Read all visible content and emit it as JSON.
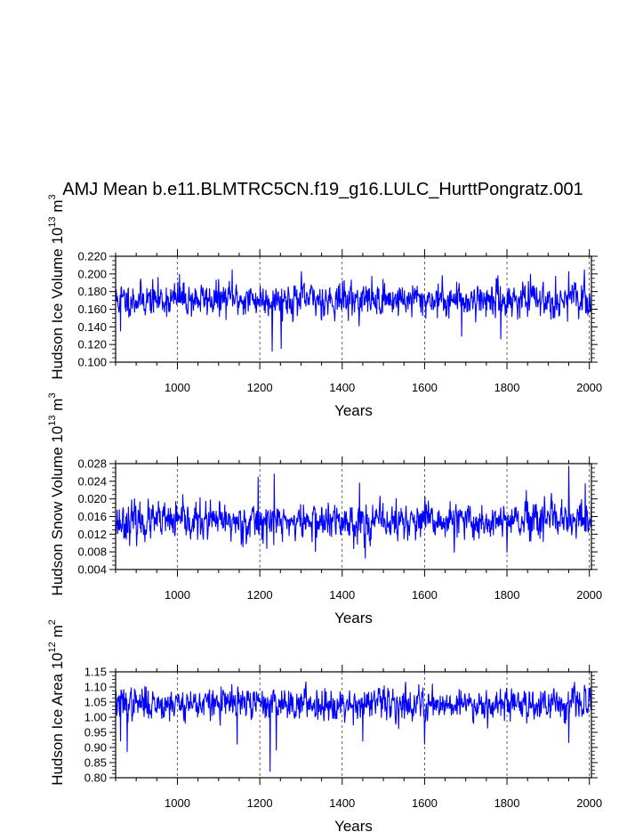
{
  "title": "AMJ Mean b.e11.BLMTRC5CN.f19_g16.LULC_HurttPongratz.001",
  "colors": {
    "line": "#0000ff",
    "axis": "#000000"
  },
  "chart_data": [
    {
      "type": "line",
      "title": "AMJ Mean b.e11.BLMTRC5CN.f19_g16.LULC_HurttPongratz.001",
      "xlabel": "Years",
      "ylabel": {
        "prefix": "Hudson Ice Volume 10",
        "exp": "13",
        "unit": " m",
        "unit_exp": "3"
      },
      "xlim": [
        850,
        2005
      ],
      "ylim": [
        0.1,
        0.22
      ],
      "xticks": [
        1000,
        1200,
        1400,
        1600,
        1800,
        2000
      ],
      "xtick_labels": [
        "1000",
        "1200",
        "1400",
        "1600",
        "1800",
        "2000"
      ],
      "yticks": [
        0.1,
        0.12,
        0.14,
        0.16,
        0.18,
        0.2,
        0.22
      ],
      "ytick_labels": [
        "0.100",
        "0.120",
        "0.140",
        "0.160",
        "0.180",
        "0.200",
        "0.220"
      ],
      "series": [
        {
          "name": "Hudson Ice Volume",
          "x_start": 850,
          "x_end": 2005,
          "mean": 0.171,
          "noise": 0.011,
          "seed": 11,
          "events": [
            [
              1133,
              0.205
            ],
            [
              1230,
              0.112
            ],
            [
              1252,
              0.115
            ],
            [
              1301,
              0.203
            ],
            [
              1690,
              0.129
            ],
            [
              1785,
              0.126
            ],
            [
              1950,
              0.203
            ],
            [
              862,
              0.135
            ],
            [
              1005,
              0.2
            ]
          ]
        }
      ]
    },
    {
      "type": "line",
      "title": "",
      "xlabel": "Years",
      "ylabel": {
        "prefix": "Hudson Snow Volume 10",
        "exp": "13",
        "unit": " m",
        "unit_exp": "3"
      },
      "xlim": [
        850,
        2005
      ],
      "ylim": [
        0.004,
        0.028
      ],
      "xticks": [
        1000,
        1200,
        1400,
        1600,
        1800,
        2000
      ],
      "xtick_labels": [
        "1000",
        "1200",
        "1400",
        "1600",
        "1800",
        "2000"
      ],
      "yticks": [
        0.004,
        0.008,
        0.012,
        0.016,
        0.02,
        0.024,
        0.028
      ],
      "ytick_labels": [
        "0.004",
        "0.008",
        "0.012",
        "0.016",
        "0.020",
        "0.024",
        "0.028"
      ],
      "series": [
        {
          "name": "Hudson Snow Volume",
          "x_start": 850,
          "x_end": 2005,
          "mean": 0.0148,
          "noise": 0.0024,
          "seed": 23,
          "events": [
            [
              1950,
              0.0275
            ],
            [
              1235,
              0.0257
            ],
            [
              1196,
              0.025
            ],
            [
              1442,
              0.0237
            ],
            [
              1990,
              0.0235
            ],
            [
              1800,
              0.0078
            ],
            [
              1456,
              0.0065
            ],
            [
              1335,
              0.008
            ],
            [
              1672,
              0.0078
            ]
          ]
        }
      ]
    },
    {
      "type": "line",
      "title": "",
      "xlabel": "Years",
      "ylabel": {
        "prefix": "Hudson Ice Area 10",
        "exp": "12",
        "unit": " m",
        "unit_exp": "2"
      },
      "xlim": [
        850,
        2005
      ],
      "ylim": [
        0.8,
        1.15
      ],
      "xticks": [
        1000,
        1200,
        1400,
        1600,
        1800,
        2000
      ],
      "xtick_labels": [
        "1000",
        "1200",
        "1400",
        "1600",
        "1800",
        "2000"
      ],
      "yticks": [
        0.8,
        0.85,
        0.9,
        0.95,
        1.0,
        1.05,
        1.1,
        1.15
      ],
      "ytick_labels": [
        "0.80",
        "0.85",
        "0.90",
        "0.95",
        "1.00",
        "1.05",
        "1.10",
        "1.15"
      ],
      "series": [
        {
          "name": "Hudson Ice Area",
          "x_start": 850,
          "x_end": 2005,
          "mean": 1.045,
          "noise": 0.03,
          "seed": 37,
          "events": [
            [
              1225,
              0.82
            ],
            [
              878,
              0.885
            ],
            [
              862,
              0.92
            ],
            [
              1145,
              0.91
            ],
            [
              1950,
              0.915
            ],
            [
              1240,
              0.89
            ],
            [
              1450,
              0.92
            ],
            [
              1600,
              0.91
            ]
          ]
        }
      ]
    }
  ]
}
